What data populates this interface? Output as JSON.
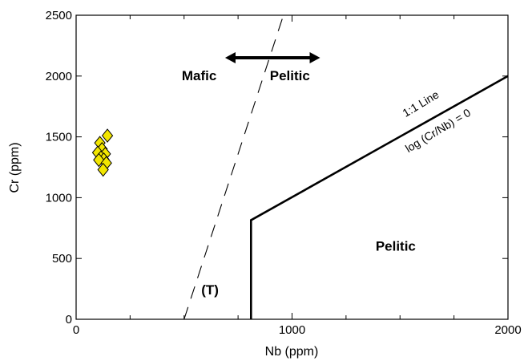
{
  "chart_data": {
    "type": "scatter",
    "title": "",
    "xlabel": "Nb (ppm)",
    "ylabel": "Cr (ppm)",
    "xlim": [
      0,
      2000
    ],
    "ylim": [
      0,
      2500
    ],
    "x_major_ticks": [
      0,
      1000,
      2000
    ],
    "x_minor_ticks": [
      250,
      500,
      750,
      1250,
      1500,
      1750
    ],
    "y_ticks": [
      0,
      500,
      1000,
      1500,
      2000,
      2500
    ],
    "grid": false,
    "marker": {
      "shape": "diamond",
      "fill": "#f2e600",
      "edge": "#000000"
    },
    "points": [
      {
        "x": 110,
        "y": 1450
      },
      {
        "x": 145,
        "y": 1510
      },
      {
        "x": 120,
        "y": 1400
      },
      {
        "x": 100,
        "y": 1370
      },
      {
        "x": 135,
        "y": 1360
      },
      {
        "x": 115,
        "y": 1330
      },
      {
        "x": 128,
        "y": 1315
      },
      {
        "x": 105,
        "y": 1310
      },
      {
        "x": 140,
        "y": 1285
      },
      {
        "x": 125,
        "y": 1230
      }
    ],
    "boundary_lines": [
      {
        "id": "boundary-T",
        "style": "dashed",
        "points": [
          [
            500,
            0
          ],
          [
            960,
            2500
          ]
        ]
      },
      {
        "id": "boundary-1to1",
        "style": "solid",
        "points": [
          [
            810,
            0
          ],
          [
            810,
            815
          ],
          [
            2000,
            2000
          ]
        ]
      }
    ],
    "arrow": {
      "style": "double-headed",
      "from": [
        690,
        2150
      ],
      "to": [
        1130,
        2150
      ]
    },
    "annotations": [
      {
        "id": "label-mafic",
        "text": "Mafic",
        "x": 570,
        "y": 1965
      },
      {
        "id": "label-pelitic-upper",
        "text": "Pelitic",
        "x": 990,
        "y": 1965
      },
      {
        "id": "label-pelitic-lower",
        "text": "Pelitic",
        "x": 1480,
        "y": 565
      },
      {
        "id": "label-T",
        "text": "(T)",
        "x": 620,
        "y": 205
      }
    ],
    "line_labels": [
      {
        "id": "label-1to1-line",
        "text": "1:1 Line",
        "x": 1605,
        "y": 1745,
        "rotate": -31
      },
      {
        "id": "label-log-ratio",
        "text": "log (Cr/Nb) = 0",
        "x": 1685,
        "y": 1525,
        "rotate": -31
      }
    ]
  }
}
